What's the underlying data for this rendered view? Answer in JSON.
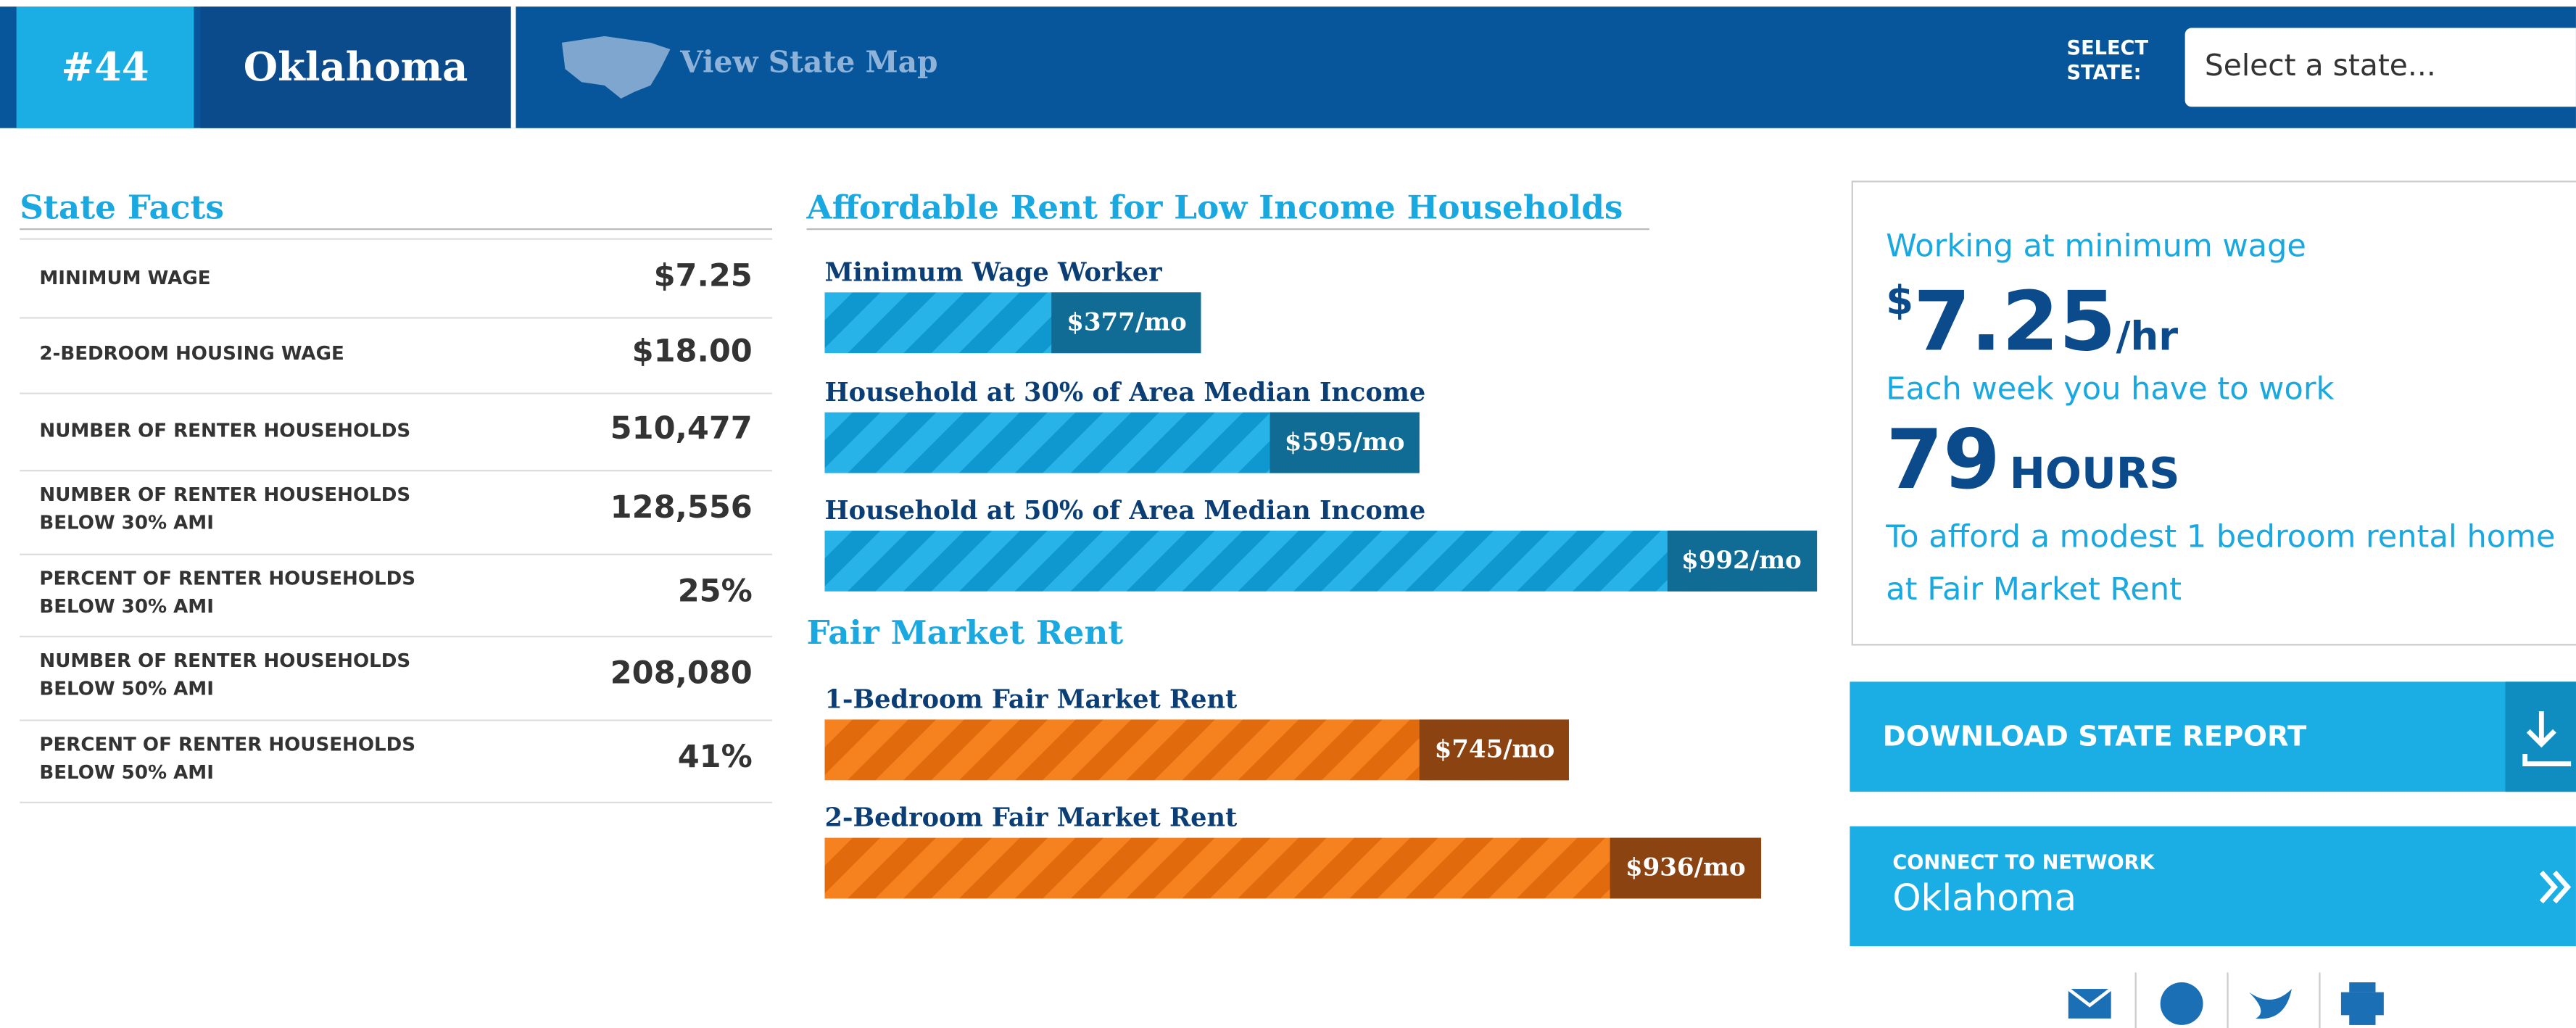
{
  "header": {
    "rank": "#44",
    "state": "Oklahoma",
    "map_link": "View State Map",
    "select_label": [
      "SELECT",
      "STATE:"
    ],
    "select_placeholder": "Select a state..."
  },
  "state_facts": {
    "title": "State Facts",
    "rows": [
      [
        "MINIMUM WAGE",
        "$7.25"
      ],
      [
        "2-BEDROOM HOUSING WAGE",
        "$18.00"
      ],
      [
        "NUMBER OF RENTER HOUSEHOLDS",
        "510,477"
      ],
      [
        "NUMBER OF RENTER HOUSEHOLDS BELOW 30% AMI",
        "128,556"
      ],
      [
        "PERCENT OF RENTER HOUSEHOLDS BELOW 30% AMI",
        "25%"
      ],
      [
        "NUMBER OF RENTER HOUSEHOLDS BELOW 50% AMI",
        "208,080"
      ],
      [
        "PERCENT OF RENTER HOUSEHOLDS BELOW 50% AMI",
        "41%"
      ]
    ]
  },
  "affordable_rent": {
    "title": "Affordable Rent for Low Income Households",
    "labels": [
      "Minimum Wage Worker",
      "Household at 30% of Area Median Income",
      "Household at 50% of Area Median Income"
    ],
    "values": [
      377,
      595,
      992
    ],
    "value_labels": [
      "$377/mo",
      "$595/mo",
      "$992/mo"
    ]
  },
  "fair_market_rent": {
    "title": "Fair Market Rent",
    "labels": [
      "1-Bedroom Fair Market Rent",
      "2-Bedroom Fair Market Rent"
    ],
    "values": [
      745,
      936
    ],
    "value_labels": [
      "$745/mo",
      "$936/mo"
    ]
  },
  "work_panel": {
    "intro": "Working at minimum wage",
    "currency": "$",
    "wage": "7.25",
    "unit": "/hr",
    "week_text": "Each week you have to work",
    "hours": "79",
    "hours_unit": "HOURS",
    "afford_text": "To afford a modest 1 bedroom rental home at Fair Market Rent"
  },
  "buttons": {
    "download": "DOWNLOAD STATE REPORT",
    "connect_label": "CONNECT TO NETWORK",
    "connect_state": "Oklahoma"
  }
}
